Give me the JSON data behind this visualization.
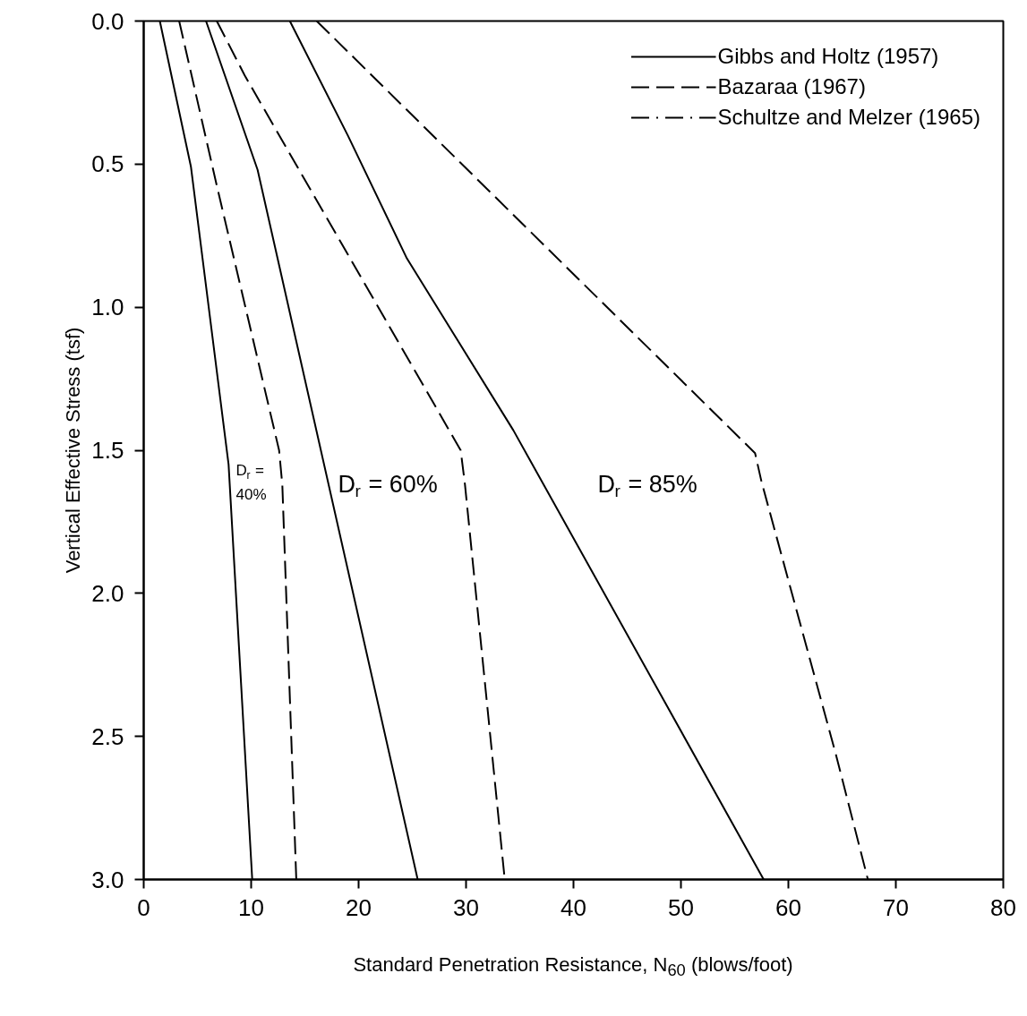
{
  "chart_data": {
    "type": "line",
    "xlabel": "Standard Penetration Resistance, N$_{60}$ (blows/foot)",
    "ylabel": "Vertical Effective Stress (tsf)",
    "xlim": [
      0,
      80
    ],
    "xticks": [
      0,
      10,
      20,
      30,
      40,
      50,
      60,
      70,
      80
    ],
    "ylim": [
      3.0,
      0.0
    ],
    "yticks": [
      {
        "value": 0,
        "label": "0.0"
      },
      {
        "value": 0.5,
        "label": "0.5"
      },
      {
        "value": 1,
        "label": "1.0"
      },
      {
        "value": 1.5,
        "label": "1.5"
      },
      {
        "value": 2,
        "label": "2.0"
      },
      {
        "value": 2.5,
        "label": "2.5"
      },
      {
        "value": 3,
        "label": "3.0"
      }
    ],
    "grid": false,
    "legend": "top right",
    "marker": "none",
    "series": [
      {
        "name": "Gibbs and Holtz (1957)",
        "color": "#000000",
        "line_style": "solid",
        "x": [
          1.5,
          4.4,
          7.9,
          10.1
        ],
        "values": [
          0,
          0.51,
          1.55,
          3.0
        ]
      },
      {
        "color": "#000000",
        "line_style": "solid",
        "x": [
          5.8,
          10.6,
          25.5
        ],
        "values": [
          0,
          0.52,
          3.0
        ]
      },
      {
        "color": "#000000",
        "line_style": "solid",
        "x": [
          13.6,
          19.0,
          24.5,
          34.4,
          57.7
        ],
        "values": [
          0,
          0.4,
          0.83,
          1.43,
          3.0
        ]
      },
      {
        "name": "Bazaraa (1967)",
        "color": "#000000",
        "line_style": "dashed",
        "x": [
          3.3,
          6.8,
          12.6,
          12.9,
          14.2
        ],
        "values": [
          0,
          0.575,
          1.5,
          1.62,
          3.0
        ]
      },
      {
        "color": "#000000",
        "line_style": "dashed",
        "x": [
          6.8,
          9.4,
          29.5,
          29.9,
          33.6
        ],
        "values": [
          0,
          0.19,
          1.5,
          1.62,
          3.0
        ]
      },
      {
        "color": "#000000",
        "line_style": "dashed",
        "x": [
          16.1,
          56.9,
          57.5,
          64.4,
          67.4
        ],
        "values": [
          0,
          1.51,
          1.61,
          2.56,
          3.0
        ]
      },
      {
        "name": "Schultze and Melzer (1965)",
        "color": "#000000",
        "line_style": "dashdot"
      }
    ],
    "annotations": [
      "D$_{r}$ =\n40%",
      "D$_{r}$ = 60%",
      "D$_{r}$ = 85%"
    ]
  }
}
